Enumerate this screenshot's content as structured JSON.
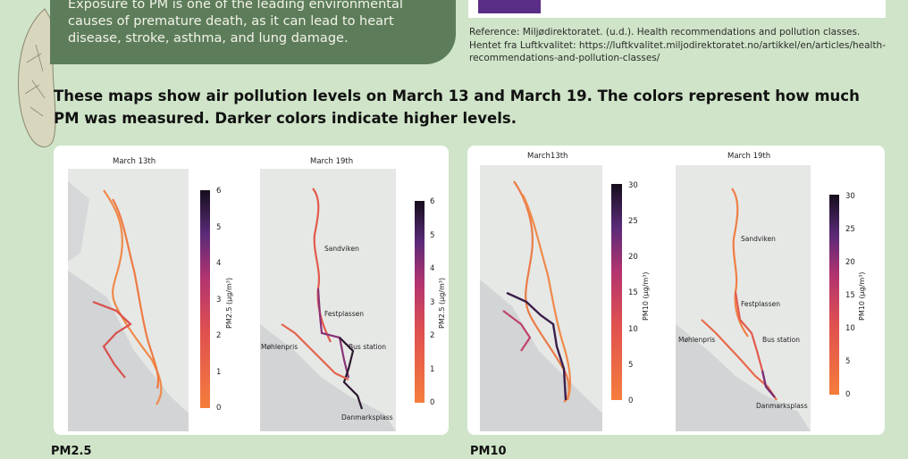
{
  "intro_bubble": {
    "text": "Exposure to PM is one of the leading environmental causes of premature death, as it can lead to heart disease, stroke, asthma, and lung damage."
  },
  "reference": {
    "text": "Reference: Miljødirektoratet. (u.d.). Health recommendations and pollution classes. Hentet fra Luftkvalitet: https://luftkvalitet.miljodirektoratet.no/artikkel/en/articles/health-recommendations-and-pollution-classes/"
  },
  "heading": {
    "text": "These maps show air pollution levels on March 13 and March 19. The colors represent how much PM was measured. Darker colors indicate higher levels."
  },
  "colors": {
    "background": "#cfe4c8",
    "bubble": "#5d7d5a",
    "legend_swatch": "#5a2d86",
    "scale_low": "#f57d3c",
    "scale_mid": "#c33b63",
    "scale_high": "#1a1021"
  },
  "panels": {
    "pm25": {
      "caption": "PM2.5",
      "left_title": "March 13th",
      "right_title": "March 19th",
      "left_colorbar": {
        "label": "PM2.5 (µg/m³)",
        "ticks": [
          "6",
          "5",
          "4",
          "3",
          "2",
          "1",
          "0"
        ]
      },
      "right_colorbar": {
        "label": "PM2.5 (µg/m³)",
        "ticks": [
          "6",
          "5",
          "4",
          "3",
          "2",
          "1",
          "0"
        ]
      },
      "places": [
        "Sandviken",
        "Festplassen",
        "Møhlenpris",
        "Bus station",
        "Danmarksplass"
      ]
    },
    "pm10": {
      "caption": "PM10",
      "left_title": "March13th",
      "right_title": "March 19th",
      "left_colorbar": {
        "label": "PM10 (µg/m³)",
        "ticks": [
          "30",
          "25",
          "20",
          "15",
          "10",
          "5",
          "0"
        ]
      },
      "right_colorbar": {
        "label": "PM10 (µg/m³)",
        "ticks": [
          "30",
          "25",
          "20",
          "15",
          "10",
          "5",
          "0"
        ]
      },
      "places": [
        "Sandviken",
        "Festplassen",
        "Møhlenpris",
        "Bus station",
        "Danmarksplass"
      ]
    }
  }
}
